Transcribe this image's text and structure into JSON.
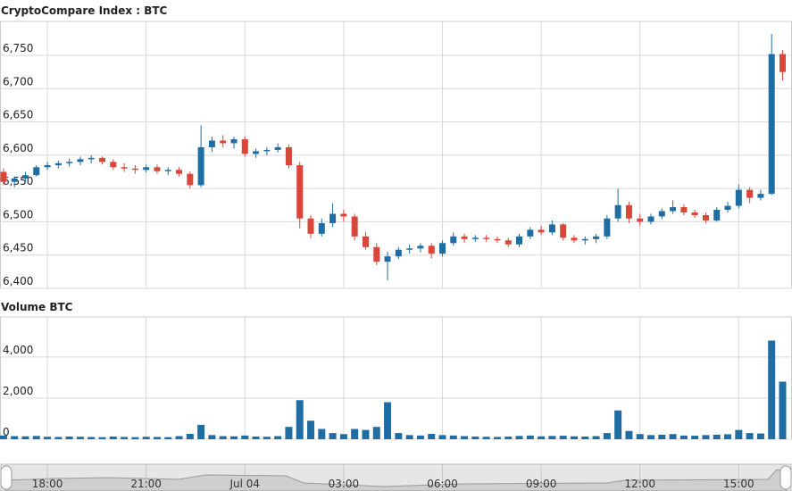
{
  "chart_data": [
    {
      "type": "candlestick",
      "title": "CryptoCompare Index : BTC",
      "x": [
        "16:40",
        "17:00",
        "17:20",
        "17:40",
        "18:00",
        "18:20",
        "18:40",
        "19:00",
        "19:20",
        "19:40",
        "20:00",
        "20:20",
        "20:40",
        "21:00",
        "21:20",
        "21:40",
        "22:00",
        "22:20",
        "22:40",
        "23:00",
        "23:20",
        "23:40",
        "00:00",
        "00:20",
        "00:40",
        "01:00",
        "01:20",
        "01:40",
        "02:00",
        "02:20",
        "02:40",
        "03:00",
        "03:20",
        "03:40",
        "04:00",
        "04:20",
        "04:40",
        "05:00",
        "05:20",
        "05:40",
        "06:00",
        "06:20",
        "06:40",
        "07:00",
        "07:20",
        "07:40",
        "08:00",
        "08:20",
        "08:40",
        "09:00",
        "09:20",
        "09:40",
        "10:00",
        "10:20",
        "10:40",
        "11:00",
        "11:20",
        "11:40",
        "12:00",
        "12:20",
        "12:40",
        "13:00",
        "13:20",
        "13:40",
        "14:00",
        "14:20",
        "14:40",
        "15:00",
        "15:20",
        "15:40",
        "16:00",
        "16:20"
      ],
      "open": [
        6575,
        6560,
        6565,
        6570,
        6582,
        6585,
        6588,
        6590,
        6594,
        6596,
        6590,
        6582,
        6580,
        6578,
        6582,
        6576,
        6578,
        6572,
        6555,
        6612,
        6622,
        6618,
        6624,
        6602,
        6606,
        6608,
        6612,
        6585,
        6505,
        6482,
        6498,
        6512,
        6508,
        6478,
        6462,
        6440,
        6448,
        6458,
        6460,
        6464,
        6452,
        6468,
        6478,
        6474,
        6476,
        6474,
        6472,
        6466,
        6478,
        6488,
        6484,
        6496,
        6476,
        6472,
        6474,
        6478,
        6505,
        6525,
        6505,
        6500,
        6508,
        6516,
        6522,
        6514,
        6510,
        6502,
        6518,
        6524,
        6548,
        6536,
        6542,
        6752
      ],
      "high": [
        6580,
        6568,
        6575,
        6585,
        6590,
        6592,
        6595,
        6598,
        6600,
        6598,
        6594,
        6588,
        6585,
        6586,
        6586,
        6582,
        6582,
        6576,
        6645,
        6628,
        6630,
        6628,
        6628,
        6610,
        6612,
        6618,
        6616,
        6590,
        6510,
        6505,
        6528,
        6518,
        6512,
        6485,
        6468,
        6455,
        6462,
        6466,
        6468,
        6468,
        6472,
        6484,
        6482,
        6480,
        6480,
        6478,
        6476,
        6482,
        6492,
        6494,
        6502,
        6498,
        6480,
        6478,
        6482,
        6510,
        6550,
        6530,
        6512,
        6512,
        6520,
        6532,
        6526,
        6518,
        6514,
        6522,
        6530,
        6556,
        6552,
        6548,
        6782,
        6758
      ],
      "low": [
        6555,
        6552,
        6560,
        6568,
        6578,
        6580,
        6583,
        6585,
        6588,
        6586,
        6578,
        6575,
        6572,
        6574,
        6572,
        6570,
        6568,
        6550,
        6552,
        6605,
        6612,
        6610,
        6598,
        6596,
        6600,
        6604,
        6580,
        6490,
        6475,
        6478,
        6492,
        6500,
        6472,
        6458,
        6435,
        6412,
        6444,
        6452,
        6454,
        6445,
        6448,
        6464,
        6468,
        6470,
        6470,
        6468,
        6462,
        6462,
        6474,
        6480,
        6480,
        6472,
        6468,
        6466,
        6468,
        6474,
        6500,
        6498,
        6494,
        6496,
        6504,
        6512,
        6510,
        6506,
        6498,
        6500,
        6514,
        6520,
        6528,
        6532,
        6540,
        6712
      ],
      "close": [
        6560,
        6565,
        6570,
        6582,
        6585,
        6588,
        6590,
        6594,
        6596,
        6590,
        6582,
        6580,
        6578,
        6582,
        6576,
        6578,
        6572,
        6555,
        6612,
        6622,
        6618,
        6624,
        6602,
        6606,
        6608,
        6612,
        6585,
        6505,
        6482,
        6498,
        6512,
        6508,
        6478,
        6462,
        6440,
        6448,
        6458,
        6460,
        6464,
        6452,
        6468,
        6478,
        6474,
        6476,
        6474,
        6472,
        6466,
        6478,
        6488,
        6484,
        6496,
        6476,
        6472,
        6474,
        6478,
        6505,
        6525,
        6505,
        6500,
        6508,
        6516,
        6522,
        6514,
        6510,
        6502,
        6518,
        6524,
        6548,
        6536,
        6542,
        6752,
        6725
      ],
      "up_color": "#1f6da3",
      "down_color": "#d9463a",
      "ylim": [
        6400,
        6801
      ],
      "yticks": [
        {
          "value": 6400,
          "label": "6,400"
        },
        {
          "value": 6450,
          "label": "6,450"
        },
        {
          "value": 6500,
          "label": "6,500"
        },
        {
          "value": 6550,
          "label": "6,550"
        },
        {
          "value": 6600,
          "label": "6,600"
        },
        {
          "value": 6650,
          "label": "6,650"
        },
        {
          "value": 6700,
          "label": "6,700"
        },
        {
          "value": 6750,
          "label": "6,750"
        }
      ],
      "xticks": [
        {
          "value": "18:00",
          "label": "18:00"
        },
        {
          "value": "21:00",
          "label": "21:00"
        },
        {
          "value": "00:00",
          "label": "Jul 04"
        },
        {
          "value": "03:00",
          "label": "03:00"
        },
        {
          "value": "06:00",
          "label": "06:00"
        },
        {
          "value": "09:00",
          "label": "09:00"
        },
        {
          "value": "12:00",
          "label": "12:00"
        },
        {
          "value": "15:00",
          "label": "15:00"
        }
      ],
      "grid": true
    },
    {
      "type": "bar",
      "title": "Volume BTC",
      "values": [
        180,
        150,
        140,
        160,
        120,
        110,
        130,
        120,
        110,
        100,
        130,
        110,
        100,
        120,
        110,
        100,
        150,
        260,
        700,
        200,
        150,
        140,
        180,
        130,
        120,
        150,
        600,
        1900,
        900,
        500,
        300,
        250,
        500,
        450,
        600,
        1800,
        300,
        200,
        180,
        260,
        200,
        180,
        150,
        130,
        120,
        110,
        130,
        160,
        180,
        140,
        160,
        170,
        140,
        130,
        150,
        300,
        1400,
        400,
        250,
        200,
        220,
        250,
        180,
        170,
        200,
        220,
        240,
        450,
        300,
        280,
        4800,
        2800
      ],
      "color": "#1f6da3",
      "ylim": [
        0,
        5950
      ],
      "yticks": [
        0,
        {
          "value": 2000,
          "label": "2,000"
        },
        {
          "value": 4000,
          "label": "4,000"
        }
      ],
      "grid": true
    }
  ]
}
